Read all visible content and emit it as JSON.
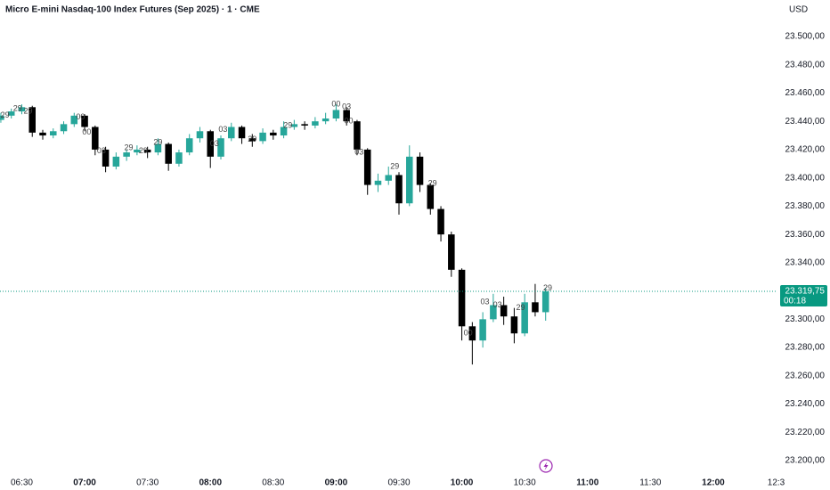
{
  "chart_data": {
    "type": "candlestick",
    "title": "Micro E-mini Nasdaq-100 Index Futures (Sep 2025) · 1 · CME",
    "currency": "USD",
    "up_color": "#26a69a",
    "down_color": "#000000",
    "x": [
      380,
      385,
      390,
      395,
      400,
      405,
      410,
      415,
      420,
      425,
      430,
      435,
      440,
      445,
      450,
      455,
      460,
      465,
      470,
      475,
      480,
      485,
      490,
      495,
      500,
      505,
      510,
      515,
      520,
      525,
      530,
      535,
      540,
      545,
      550,
      555,
      560,
      565,
      570,
      575,
      580,
      585,
      590,
      595,
      600,
      605,
      610,
      615,
      620,
      625,
      630,
      635,
      640
    ],
    "open": [
      23441,
      23444,
      23447,
      23450,
      23432,
      23430,
      23433,
      23438,
      23444,
      23436,
      23420,
      23408,
      23415,
      23418,
      23420,
      23418,
      23424,
      23410,
      23418,
      23428,
      23433,
      23415,
      23428,
      23436,
      23428,
      23426,
      23432,
      23430,
      23436,
      23438,
      23437,
      23440,
      23442,
      23448,
      23440,
      23420,
      23395,
      23398,
      23402,
      23382,
      23415,
      23395,
      23378,
      23360,
      23335,
      23295,
      23285,
      23300,
      23310,
      23302,
      23290,
      23312,
      23305
    ],
    "high": [
      23446,
      23449,
      23452,
      23451,
      23434,
      23435,
      23440,
      23446,
      23445,
      23437,
      23422,
      23418,
      23420,
      23423,
      23422,
      23428,
      23425,
      23420,
      23431,
      23436,
      23434,
      23430,
      23439,
      23437,
      23431,
      23435,
      23434,
      23440,
      23441,
      23440,
      23443,
      23446,
      23452,
      23450,
      23441,
      23421,
      23403,
      23408,
      23404,
      23423,
      23418,
      23396,
      23380,
      23362,
      23336,
      23298,
      23305,
      23318,
      23316,
      23308,
      23318,
      23325,
      23322
    ],
    "low": [
      23439,
      23442,
      23445,
      23429,
      23427,
      23428,
      23431,
      23436,
      23433,
      23416,
      23404,
      23406,
      23412,
      23416,
      23414,
      23416,
      23405,
      23408,
      23416,
      23425,
      23407,
      23413,
      23426,
      23424,
      23422,
      23424,
      23427,
      23428,
      23434,
      23434,
      23435,
      23438,
      23440,
      23437,
      23416,
      23388,
      23390,
      23395,
      23374,
      23380,
      23390,
      23374,
      23355,
      23330,
      23285,
      23268,
      23280,
      23298,
      23296,
      23283,
      23288,
      23302,
      23299
    ],
    "close": [
      23444,
      23447,
      23450,
      23432,
      23430,
      23433,
      23438,
      23444,
      23436,
      23420,
      23408,
      23415,
      23418,
      23420,
      23418,
      23424,
      23410,
      23418,
      23428,
      23433,
      23415,
      23428,
      23436,
      23428,
      23426,
      23432,
      23430,
      23436,
      23438,
      23437,
      23440,
      23442,
      23448,
      23440,
      23420,
      23395,
      23398,
      23402,
      23382,
      23415,
      23395,
      23378,
      23360,
      23335,
      23295,
      23285,
      23300,
      23310,
      23302,
      23290,
      23312,
      23305,
      23319.75
    ],
    "xlim": [
      379.6,
      750.2
    ],
    "xticks": [
      {
        "value": 390,
        "label": "06:30"
      },
      {
        "value": 420,
        "label": "07:00"
      },
      {
        "value": 450,
        "label": "07:30"
      },
      {
        "value": 480,
        "label": "08:00"
      },
      {
        "value": 510,
        "label": "08:30"
      },
      {
        "value": 540,
        "label": "09:00"
      },
      {
        "value": 570,
        "label": "09:30"
      },
      {
        "value": 600,
        "label": "10:00"
      },
      {
        "value": 630,
        "label": "10:30"
      },
      {
        "value": 660,
        "label": "11:00"
      },
      {
        "value": 690,
        "label": "11:30"
      },
      {
        "value": 720,
        "label": "12:00"
      },
      {
        "value": 750,
        "label": "12:3"
      }
    ],
    "ylim": [
      23188.7,
      23525.8
    ],
    "yticks": [
      {
        "value": 23200,
        "label": "23.200,00"
      },
      {
        "value": 23220,
        "label": "23.220,00"
      },
      {
        "value": 23240,
        "label": "23.240,00"
      },
      {
        "value": 23260,
        "label": "23.260,00"
      },
      {
        "value": 23280,
        "label": "23.280,00"
      },
      {
        "value": 23300,
        "label": "23.300,00"
      },
      {
        "value": 23320,
        "label": "23.320,00"
      },
      {
        "value": 23340,
        "label": "23.340,00"
      },
      {
        "value": 23360,
        "label": "23.360,00"
      },
      {
        "value": 23380,
        "label": "23.380,00"
      },
      {
        "value": 23400,
        "label": "23.400,00"
      },
      {
        "value": 23420,
        "label": "23.420,00"
      },
      {
        "value": 23440,
        "label": "23.440,00"
      },
      {
        "value": 23460,
        "label": "23.460,00"
      },
      {
        "value": 23480,
        "label": "23.480,00"
      },
      {
        "value": 23500,
        "label": "23.500,00"
      }
    ],
    "grid": false,
    "last_price": {
      "value": 23319.75,
      "label": "23.319,75",
      "countdown": "00:18",
      "color": "#089981"
    },
    "annotations": [
      {
        "text": "29",
        "x": 382,
        "y": 23444
      },
      {
        "text": "29",
        "x": 388,
        "y": 23449
      },
      {
        "text": "29",
        "x": 393,
        "y": 23447
      },
      {
        "text": "00",
        "x": 418,
        "y": 23443
      },
      {
        "text": "00",
        "x": 421,
        "y": 23432
      },
      {
        "text": "03",
        "x": 428,
        "y": 23419
      },
      {
        "text": "29",
        "x": 441,
        "y": 23421
      },
      {
        "text": "29",
        "x": 448,
        "y": 23419
      },
      {
        "text": "29",
        "x": 455,
        "y": 23425
      },
      {
        "text": "03",
        "x": 482,
        "y": 23424
      },
      {
        "text": "03",
        "x": 486,
        "y": 23434
      },
      {
        "text": "29",
        "x": 500,
        "y": 23427
      },
      {
        "text": "29",
        "x": 517,
        "y": 23437
      },
      {
        "text": "00",
        "x": 540,
        "y": 23452
      },
      {
        "text": "03",
        "x": 545,
        "y": 23450
      },
      {
        "text": "00",
        "x": 546,
        "y": 23440
      },
      {
        "text": "03",
        "x": 551,
        "y": 23418
      },
      {
        "text": "29",
        "x": 568,
        "y": 23408
      },
      {
        "text": "29",
        "x": 586,
        "y": 23396
      },
      {
        "text": "00",
        "x": 603,
        "y": 23290
      },
      {
        "text": "03",
        "x": 611,
        "y": 23312
      },
      {
        "text": "03",
        "x": 617,
        "y": 23310
      },
      {
        "text": "29",
        "x": 628,
        "y": 23308
      },
      {
        "text": "29",
        "x": 641,
        "y": 23322
      }
    ]
  }
}
